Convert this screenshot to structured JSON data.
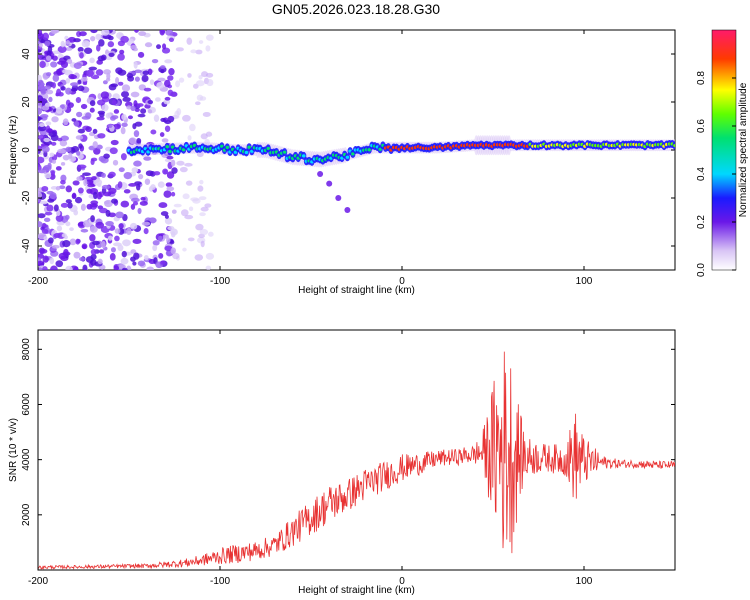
{
  "title": "GN05.2026.023.18.28.G30",
  "colors": {
    "series": "#e83232",
    "frame": "#000000",
    "background": "#ffffff"
  },
  "chart_data": [
    {
      "type": "heatmap",
      "name": "spectrogram",
      "title": "GN05.2026.023.18.28.G30",
      "xlabel": "Height of straight line (km)",
      "ylabel": "Frequency (Hz)",
      "xlim": [
        -200,
        150
      ],
      "ylim": [
        -50,
        50
      ],
      "xticks": [
        -200,
        -100,
        0,
        100
      ],
      "yticks": [
        -40,
        -20,
        0,
        20,
        40
      ],
      "grid": false,
      "colorbar": {
        "label": "Normalized spectral amplitude",
        "range": [
          0,
          1
        ],
        "ticks": [
          0.0,
          0.2,
          0.4,
          0.6,
          0.8
        ],
        "tick_labels": [
          "0.0",
          "0.2",
          "0.4",
          "0.6",
          "0.8"
        ]
      },
      "ridge": [
        {
          "x": -150,
          "f": 0
        },
        {
          "x": -130,
          "f": 0.5
        },
        {
          "x": -110,
          "f": 1
        },
        {
          "x": -90,
          "f": 0
        },
        {
          "x": -75,
          "f": 0
        },
        {
          "x": -60,
          "f": -3
        },
        {
          "x": -45,
          "f": -4
        },
        {
          "x": -30,
          "f": -2
        },
        {
          "x": -15,
          "f": 1
        },
        {
          "x": 0,
          "f": 1
        },
        {
          "x": 20,
          "f": 1
        },
        {
          "x": 40,
          "f": 2
        },
        {
          "x": 60,
          "f": 2
        },
        {
          "x": 80,
          "f": 2
        },
        {
          "x": 100,
          "f": 2
        },
        {
          "x": 120,
          "f": 2
        },
        {
          "x": 150,
          "f": 2
        }
      ],
      "branch": [
        {
          "x": -45,
          "f": -10
        },
        {
          "x": -40,
          "f": -14
        },
        {
          "x": -35,
          "f": -20
        },
        {
          "x": -30,
          "f": -25
        }
      ]
    },
    {
      "type": "line",
      "name": "snr",
      "xlabel": "Height of straight line (km)",
      "ylabel": "SNR (10 * v/v)",
      "xlim": [
        -200,
        150
      ],
      "ylim": [
        0,
        8700
      ],
      "xticks": [
        -200,
        -100,
        0,
        100
      ],
      "yticks": [
        2000,
        4000,
        6000,
        8000
      ],
      "grid": false,
      "x": [
        -200,
        -180,
        -160,
        -140,
        -120,
        -110,
        -100,
        -90,
        -80,
        -70,
        -60,
        -50,
        -40,
        -30,
        -20,
        -10,
        0,
        10,
        20,
        30,
        40,
        45,
        50,
        55,
        60,
        65,
        70,
        80,
        90,
        95,
        100,
        110,
        120,
        130,
        140,
        150
      ],
      "values": [
        100,
        110,
        130,
        150,
        250,
        350,
        500,
        600,
        700,
        900,
        1400,
        1900,
        2400,
        2700,
        3100,
        3400,
        3700,
        3850,
        4050,
        4100,
        4200,
        4300,
        4300,
        4400,
        4200,
        4150,
        4100,
        4050,
        4000,
        4100,
        3950,
        3900,
        3850,
        3850,
        3800,
        3800
      ],
      "amplitude": [
        60,
        60,
        70,
        80,
        150,
        200,
        300,
        350,
        350,
        400,
        550,
        650,
        700,
        600,
        600,
        550,
        500,
        400,
        300,
        300,
        350,
        900,
        2500,
        4000,
        3800,
        1500,
        700,
        500,
        600,
        1800,
        900,
        250,
        150,
        150,
        150,
        150
      ]
    }
  ]
}
